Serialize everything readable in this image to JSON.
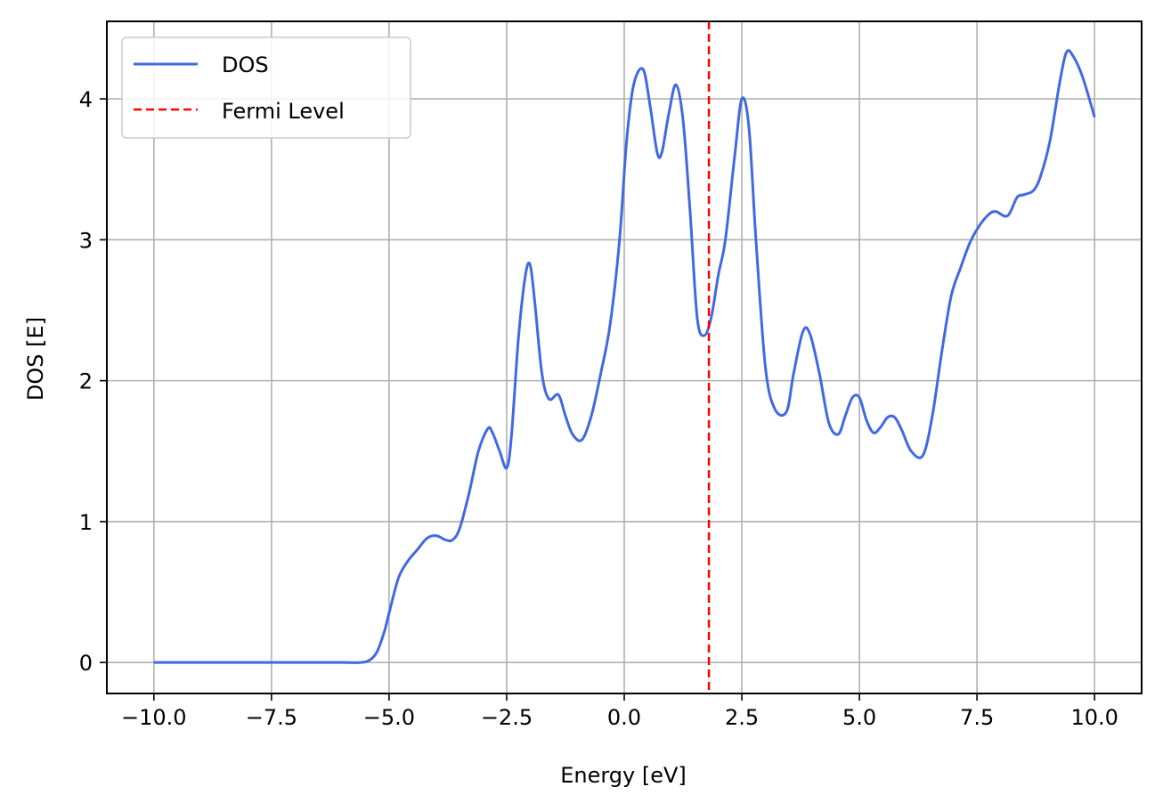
{
  "chart_data": {
    "type": "line",
    "title": "",
    "xlabel": "Energy [eV]",
    "ylabel": "DOS [E]",
    "xlim": [
      -11.0,
      11.0
    ],
    "ylim": [
      -0.22,
      4.55
    ],
    "grid": true,
    "legend_position": "top-left",
    "x_ticks": [
      -10.0,
      -7.5,
      -5.0,
      -2.5,
      0.0,
      2.5,
      5.0,
      7.5,
      10.0
    ],
    "x_tick_labels": [
      "−10.0",
      "−7.5",
      "−5.0",
      "−2.5",
      "0.0",
      "2.5",
      "5.0",
      "7.5",
      "10.0"
    ],
    "y_ticks": [
      0,
      1,
      2,
      3,
      4
    ],
    "y_tick_labels": [
      "0",
      "1",
      "2",
      "3",
      "4"
    ],
    "fermi_level": 1.8,
    "series": [
      {
        "name": "DOS",
        "color": "#4169e1",
        "style": "solid",
        "x": [
          -10.0,
          -7.5,
          -6.0,
          -5.6,
          -5.4,
          -5.25,
          -5.1,
          -5.0,
          -4.8,
          -4.6,
          -4.4,
          -4.2,
          -4.0,
          -3.8,
          -3.65,
          -3.5,
          -3.3,
          -3.1,
          -2.9,
          -2.8,
          -2.65,
          -2.5,
          -2.4,
          -2.25,
          -2.1,
          -2.0,
          -1.9,
          -1.75,
          -1.6,
          -1.4,
          -1.25,
          -1.1,
          -0.9,
          -0.7,
          -0.5,
          -0.3,
          -0.1,
          0.05,
          0.2,
          0.4,
          0.55,
          0.7,
          0.8,
          0.95,
          1.1,
          1.25,
          1.4,
          1.55,
          1.7,
          1.85,
          2.0,
          2.15,
          2.35,
          2.5,
          2.65,
          2.8,
          3.0,
          3.2,
          3.45,
          3.6,
          3.8,
          3.95,
          4.15,
          4.35,
          4.55,
          4.7,
          4.85,
          5.0,
          5.15,
          5.3,
          5.45,
          5.6,
          5.75,
          5.9,
          6.1,
          6.35,
          6.55,
          6.75,
          6.95,
          7.15,
          7.35,
          7.55,
          7.75,
          7.9,
          8.15,
          8.35,
          8.5,
          8.7,
          8.85,
          9.05,
          9.25,
          9.4,
          9.55,
          9.75,
          10.0
        ],
        "values": [
          0.0,
          0.0,
          0.0,
          0.0,
          0.02,
          0.08,
          0.22,
          0.35,
          0.6,
          0.72,
          0.8,
          0.88,
          0.9,
          0.87,
          0.87,
          0.95,
          1.2,
          1.5,
          1.66,
          1.63,
          1.5,
          1.38,
          1.6,
          2.3,
          2.75,
          2.82,
          2.55,
          2.05,
          1.87,
          1.9,
          1.75,
          1.62,
          1.58,
          1.75,
          2.05,
          2.4,
          3.0,
          3.7,
          4.1,
          4.21,
          3.95,
          3.62,
          3.62,
          3.9,
          4.1,
          3.85,
          3.2,
          2.45,
          2.32,
          2.45,
          2.75,
          3.0,
          3.6,
          4.0,
          3.8,
          3.0,
          2.1,
          1.8,
          1.78,
          2.05,
          2.35,
          2.33,
          2.05,
          1.7,
          1.62,
          1.75,
          1.88,
          1.88,
          1.72,
          1.63,
          1.67,
          1.74,
          1.74,
          1.65,
          1.5,
          1.47,
          1.75,
          2.2,
          2.6,
          2.8,
          2.98,
          3.1,
          3.18,
          3.2,
          3.17,
          3.3,
          3.32,
          3.35,
          3.45,
          3.7,
          4.1,
          4.33,
          4.3,
          4.15,
          3.87
        ]
      },
      {
        "name": "Fermi Level",
        "color": "#ff0000",
        "style": "dashed"
      }
    ]
  }
}
